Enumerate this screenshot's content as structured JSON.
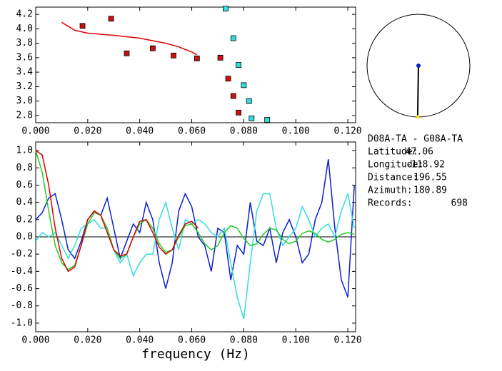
{
  "chart_data": [
    {
      "type": "scatter",
      "xlim": [
        0,
        0.123
      ],
      "ylim": [
        2.7,
        4.3
      ],
      "xticks": [
        {
          "value": 0,
          "label": "0.000"
        },
        {
          "value": 0.02,
          "label": "0.020"
        },
        {
          "value": 0.04,
          "label": "0.040"
        },
        {
          "value": 0.06,
          "label": "0.060"
        },
        {
          "value": 0.08,
          "label": "0.080"
        },
        {
          "value": 0.1,
          "label": "0.100"
        },
        {
          "value": 0.12,
          "label": "0.120"
        }
      ],
      "yticks": [
        2.8,
        {
          "value": 3,
          "label": "3.0"
        },
        3.2,
        3.4,
        3.6,
        3.8,
        {
          "value": 4,
          "label": "4.0"
        },
        4.2
      ],
      "series": [
        {
          "mode": "markers",
          "color": "#cc1111",
          "x": [
            0.018,
            0.029,
            0.035,
            0.045,
            0.053,
            0.062,
            0.071,
            0.074,
            0.076,
            0.078
          ],
          "values": [
            4.04,
            4.14,
            3.66,
            3.73,
            3.63,
            3.59,
            3.6,
            3.31,
            3.07,
            2.84
          ]
        },
        {
          "mode": "markers",
          "color": "#33dddd",
          "x": [
            0.073,
            0.076,
            0.078,
            0.08,
            0.082,
            0.083,
            0.089
          ],
          "values": [
            4.28,
            3.87,
            3.5,
            3.22,
            3.0,
            2.76,
            2.74
          ]
        },
        {
          "mode": "line",
          "color": "#dd0000",
          "x": [
            0.01,
            0.015,
            0.02,
            0.03,
            0.04,
            0.05,
            0.055,
            0.06,
            0.062
          ],
          "values": [
            4.09,
            3.98,
            3.94,
            3.91,
            3.87,
            3.8,
            3.75,
            3.68,
            3.64
          ]
        }
      ]
    },
    {
      "type": "line",
      "xlabel": "frequency (Hz)",
      "xlim": [
        0,
        0.123
      ],
      "ylim": [
        -1.1,
        1.1
      ],
      "xticks": [
        {
          "value": 0,
          "label": "0.000"
        },
        {
          "value": 0.02,
          "label": "0.020"
        },
        {
          "value": 0.04,
          "label": "0.040"
        },
        {
          "value": 0.06,
          "label": "0.060"
        },
        {
          "value": 0.08,
          "label": "0.080"
        },
        {
          "value": 0.1,
          "label": "0.100"
        },
        {
          "value": 0.12,
          "label": "0.120"
        }
      ],
      "yticks": [
        {
          "value": -1,
          "label": "-1.0"
        },
        -0.8,
        -0.6,
        -0.4,
        -0.2,
        {
          "value": 0,
          "label": "0.0"
        },
        0.2,
        0.4,
        0.6,
        0.8,
        {
          "value": 1,
          "label": "1.0"
        }
      ],
      "x": [
        0,
        0.0025,
        0.005,
        0.0075,
        0.01,
        0.0125,
        0.015,
        0.0175,
        0.02,
        0.0225,
        0.025,
        0.0275,
        0.03,
        0.0325,
        0.035,
        0.0375,
        0.04,
        0.0425,
        0.045,
        0.0475,
        0.05,
        0.0525,
        0.055,
        0.0575,
        0.06,
        0.0625,
        0.065,
        0.0675,
        0.07,
        0.0725,
        0.075,
        0.0775,
        0.08,
        0.0825,
        0.085,
        0.0875,
        0.09,
        0.0925,
        0.095,
        0.0975,
        0.1,
        0.1025,
        0.105,
        0.1075,
        0.11,
        0.1125,
        0.115,
        0.1175,
        0.12,
        0.1225
      ],
      "series": [
        {
          "color": "#0a1fd0",
          "values": [
            0.2,
            0.28,
            0.45,
            0.5,
            0.2,
            -0.15,
            -0.25,
            -0.05,
            0.2,
            0.3,
            0.25,
            0.45,
            0.1,
            -0.25,
            -0.05,
            0.15,
            0.05,
            0.4,
            0.2,
            -0.3,
            -0.6,
            -0.3,
            0.3,
            0.5,
            0.35,
            0.0,
            -0.1,
            -0.4,
            0.1,
            0.05,
            -0.5,
            -0.1,
            -0.2,
            0.4,
            -0.05,
            -0.1,
            0.1,
            -0.3,
            0.05,
            0.2,
            0.0,
            -0.3,
            -0.2,
            0.2,
            0.4,
            0.9,
            0.1,
            -0.5,
            -0.7,
            0.6
          ]
        },
        {
          "color": "#33dddd",
          "values": [
            -0.05,
            0.05,
            0.0,
            0.05,
            -0.1,
            -0.25,
            -0.1,
            0.1,
            0.15,
            0.2,
            0.1,
            0.1,
            -0.15,
            -0.3,
            -0.2,
            -0.45,
            -0.3,
            -0.2,
            -0.2,
            0.2,
            0.4,
            0.1,
            -0.15,
            0.2,
            0.15,
            0.2,
            0.15,
            0.05,
            0.0,
            0.1,
            -0.3,
            -0.7,
            -0.95,
            -0.3,
            0.3,
            0.5,
            0.5,
            0.1,
            -0.1,
            0.0,
            0.1,
            0.35,
            0.2,
            0.0,
            0.1,
            0.15,
            0.0,
            0.3,
            0.5,
            0.1
          ]
        },
        {
          "color": "#22cc22",
          "values": [
            1.0,
            0.75,
            0.3,
            -0.1,
            -0.3,
            -0.38,
            -0.33,
            -0.1,
            0.15,
            0.28,
            0.25,
            0.1,
            -0.15,
            -0.25,
            -0.2,
            0.0,
            0.15,
            0.2,
            0.1,
            -0.08,
            -0.18,
            -0.15,
            0.0,
            0.13,
            0.15,
            0.05,
            -0.08,
            -0.15,
            -0.1,
            0.05,
            0.13,
            0.1,
            -0.02,
            -0.1,
            -0.08,
            0.03,
            0.1,
            0.08,
            -0.03,
            -0.08,
            -0.05,
            0.04,
            0.07,
            0.04,
            -0.03,
            -0.06,
            -0.03,
            0.03,
            0.05,
            0.03
          ]
        },
        {
          "color": "#dd0000",
          "values": [
            1.0,
            0.95,
            0.6,
            0.1,
            -0.25,
            -0.4,
            -0.35,
            -0.1,
            0.2,
            0.3,
            0.25,
            0.05,
            -0.15,
            -0.22,
            -0.2,
            0.0,
            0.18,
            0.2,
            0.05,
            -0.12,
            -0.2,
            -0.15,
            0.02,
            0.15,
            0.18,
            0.1,
            null,
            null,
            null,
            null,
            null,
            null,
            null,
            null,
            null,
            null,
            null,
            null,
            null,
            null,
            null,
            null,
            null,
            null,
            null,
            null,
            null,
            null,
            null,
            null
          ]
        }
      ]
    }
  ],
  "info": {
    "station_pair": "D08A-TA  -  G08A-TA",
    "labels": [
      "Latitude:",
      "Longitude:",
      "Distance:",
      "Azimuth:",
      "Records:"
    ],
    "latitude": 47.06,
    "longitude": -118.92,
    "distance": 196.55,
    "azimuth": 180.89,
    "records": 698
  }
}
